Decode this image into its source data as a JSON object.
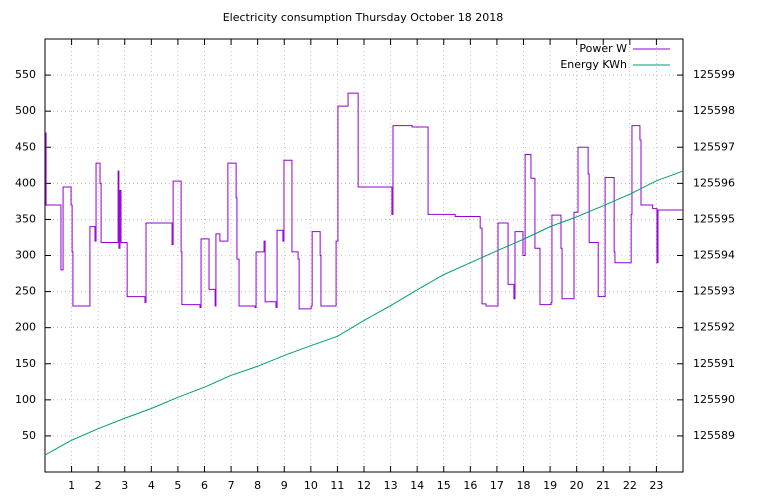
{
  "chart_data": {
    "type": "line",
    "title": "Electricity consumption Thursday October 18 2018",
    "xlim": [
      0,
      24
    ],
    "xticks": [
      1,
      2,
      3,
      4,
      5,
      6,
      7,
      8,
      9,
      10,
      11,
      12,
      13,
      14,
      15,
      16,
      17,
      18,
      19,
      20,
      21,
      22,
      23
    ],
    "ylim": [
      0,
      600
    ],
    "yticks": [
      50,
      100,
      150,
      200,
      250,
      300,
      350,
      400,
      450,
      500,
      550
    ],
    "y2lim": [
      125588,
      125600
    ],
    "y2ticks": [
      125589,
      125590,
      125591,
      125592,
      125593,
      125594,
      125595,
      125596,
      125597,
      125598,
      125599
    ],
    "grid": true,
    "legend": "top-right",
    "series": [
      {
        "name": "Power W",
        "color": "#9400d3",
        "step": "post",
        "x": [
          0,
          0.04,
          0.6,
          0.68,
          0.98,
          1.02,
          1.05,
          1.69,
          1.88,
          1.92,
          2.07,
          2.11,
          2.75,
          2.78,
          2.82,
          2.86,
          3.09,
          3.76,
          3.8,
          4.78,
          4.82,
          5.12,
          5.15,
          5.83,
          5.87,
          6.17,
          6.4,
          6.43,
          6.58,
          6.88,
          7.19,
          7.22,
          7.3,
          7.9,
          7.94,
          8.24,
          8.28,
          8.69,
          8.73,
          8.95,
          8.99,
          9.29,
          9.52,
          9.56,
          10.01,
          10.05,
          10.35,
          10.38,
          10.95,
          11.02,
          11.4,
          11.78,
          13.05,
          13.09,
          13.81,
          14.41,
          15.43,
          16.37,
          16.44,
          16.59,
          17.04,
          17.42,
          17.64,
          17.68,
          17.98,
          18.06,
          18.28,
          18.43,
          18.62,
          19.04,
          19.07,
          19.41,
          19.45,
          19.9,
          20.05,
          20.43,
          20.47,
          20.81,
          21.07,
          21.41,
          21.44,
          22.05,
          22.08,
          22.38,
          22.42,
          22.86,
          23.02,
          23.06,
          24
        ],
        "values": [
          470,
          370,
          280,
          395,
          370,
          305,
          230,
          340,
          320,
          428,
          400,
          318,
          417,
          310,
          390,
          318,
          243,
          235,
          345,
          315,
          403,
          305,
          232,
          228,
          323,
          253,
          230,
          330,
          320,
          428,
          380,
          295,
          230,
          228,
          305,
          320,
          236,
          228,
          335,
          320,
          432,
          305,
          295,
          226,
          230,
          333,
          300,
          230,
          320,
          507,
          525,
          395,
          357,
          480,
          478,
          357,
          354,
          338,
          233,
          230,
          345,
          260,
          240,
          333,
          300,
          440,
          407,
          310,
          232,
          235,
          356,
          310,
          240,
          360,
          450,
          413,
          318,
          243,
          408,
          305,
          290,
          357,
          480,
          460,
          370,
          365,
          290,
          363,
          363
        ]
      },
      {
        "name": "Energy KWh",
        "color": "#009e73",
        "axis": "y2",
        "x": [
          0,
          1,
          2,
          3,
          4,
          5,
          6,
          7,
          8,
          9,
          10,
          11,
          12,
          13,
          14,
          15,
          16,
          17,
          18,
          19,
          20,
          21,
          22,
          23,
          24
        ],
        "values": [
          125588.47,
          125588.88,
          125589.2,
          125589.49,
          125589.76,
          125590.07,
          125590.35,
          125590.68,
          125590.93,
          125591.23,
          125591.5,
          125591.76,
          125592.2,
          125592.61,
          125593.05,
          125593.47,
          125593.8,
          125594.13,
          125594.45,
          125594.8,
          125595.07,
          125595.38,
          125595.7,
          125596.07,
          125596.34
        ]
      }
    ]
  }
}
